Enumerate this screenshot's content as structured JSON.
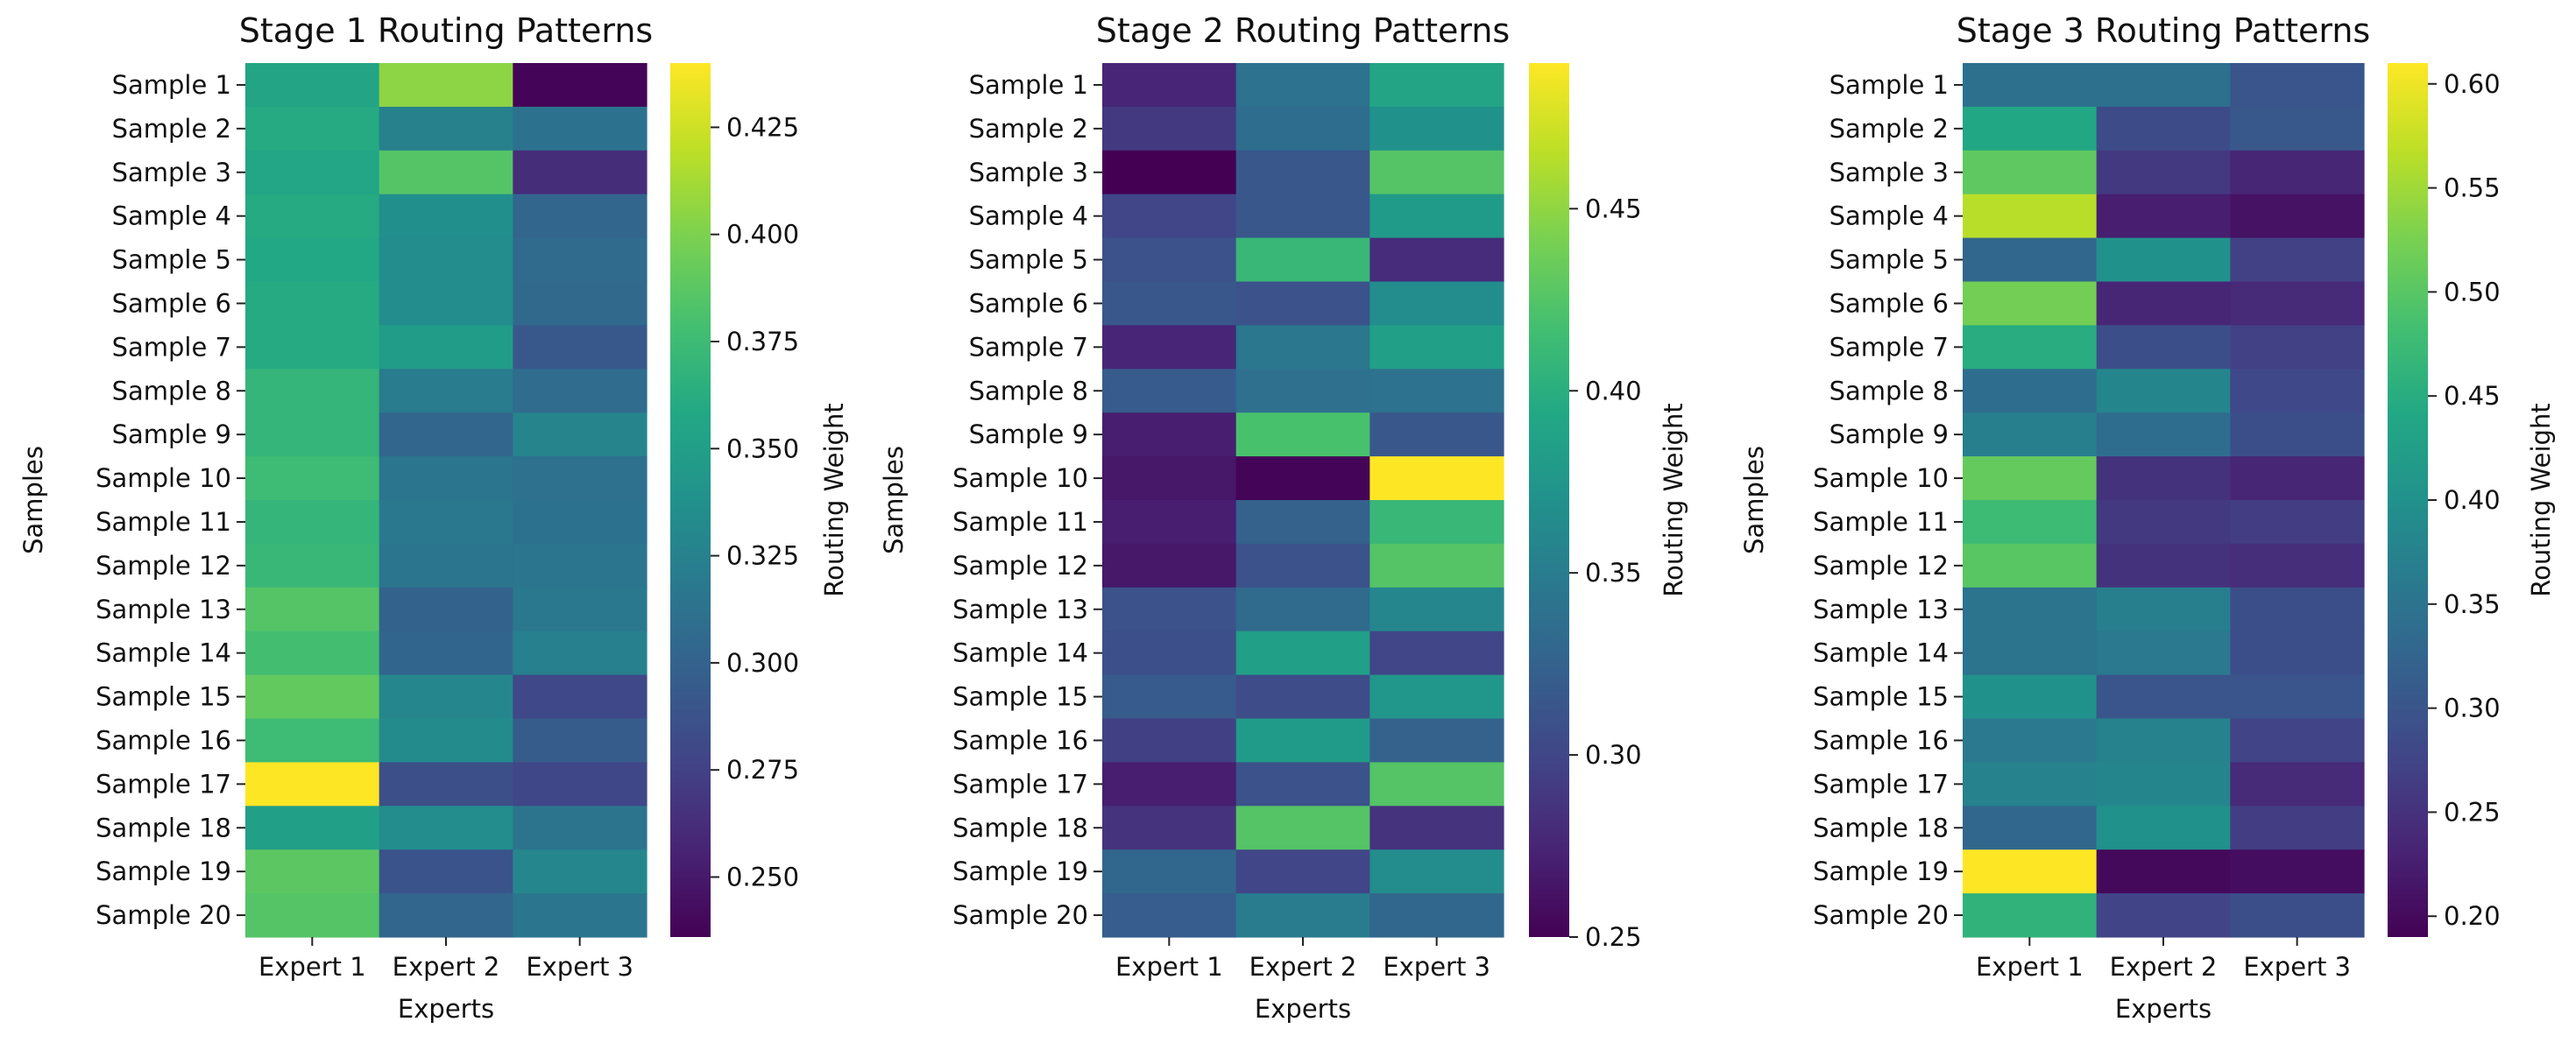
{
  "figure": {
    "colorbar_label": "Routing Weight"
  },
  "chart_data": [
    {
      "type": "heatmap",
      "title": "Stage 1 Routing Patterns",
      "xlabel": "Experts",
      "ylabel": "Samples",
      "colorbar_label": "Routing Weight",
      "colormap": "viridis",
      "x_categories": [
        "Expert 1",
        "Expert 2",
        "Expert 3"
      ],
      "y_categories": [
        "Sample 1",
        "Sample 2",
        "Sample 3",
        "Sample 4",
        "Sample 5",
        "Sample 6",
        "Sample 7",
        "Sample 8",
        "Sample 9",
        "Sample 10",
        "Sample 11",
        "Sample 12",
        "Sample 13",
        "Sample 14",
        "Sample 15",
        "Sample 16",
        "Sample 17",
        "Sample 18",
        "Sample 19",
        "Sample 20"
      ],
      "vmin": 0.236,
      "vmax": 0.44,
      "colorbar_ticks": [
        0.25,
        0.275,
        0.3,
        0.325,
        0.35,
        0.375,
        0.4,
        0.425
      ],
      "colorbar_tick_labels": [
        "0.250",
        "0.275",
        "0.300",
        "0.325",
        "0.350",
        "0.375",
        "0.400",
        "0.425"
      ],
      "values": [
        [
          0.355,
          0.405,
          0.238
        ],
        [
          0.36,
          0.325,
          0.313
        ],
        [
          0.357,
          0.385,
          0.262
        ],
        [
          0.36,
          0.337,
          0.303
        ],
        [
          0.358,
          0.335,
          0.306
        ],
        [
          0.36,
          0.335,
          0.305
        ],
        [
          0.36,
          0.348,
          0.292
        ],
        [
          0.37,
          0.32,
          0.308
        ],
        [
          0.37,
          0.303,
          0.327
        ],
        [
          0.375,
          0.315,
          0.312
        ],
        [
          0.37,
          0.318,
          0.313
        ],
        [
          0.372,
          0.315,
          0.315
        ],
        [
          0.385,
          0.3,
          0.318
        ],
        [
          0.378,
          0.302,
          0.324
        ],
        [
          0.39,
          0.33,
          0.28
        ],
        [
          0.375,
          0.333,
          0.295
        ],
        [
          0.44,
          0.285,
          0.279
        ],
        [
          0.35,
          0.335,
          0.314
        ],
        [
          0.388,
          0.288,
          0.33
        ],
        [
          0.385,
          0.303,
          0.316
        ]
      ]
    },
    {
      "type": "heatmap",
      "title": "Stage 2 Routing Patterns",
      "xlabel": "Experts",
      "ylabel": "Samples",
      "colorbar_label": "Routing Weight",
      "colormap": "viridis",
      "x_categories": [
        "Expert 1",
        "Expert 2",
        "Expert 3"
      ],
      "y_categories": [
        "Sample 1",
        "Sample 2",
        "Sample 3",
        "Sample 4",
        "Sample 5",
        "Sample 6",
        "Sample 7",
        "Sample 8",
        "Sample 9",
        "Sample 10",
        "Sample 11",
        "Sample 12",
        "Sample 13",
        "Sample 14",
        "Sample 15",
        "Sample 16",
        "Sample 17",
        "Sample 18",
        "Sample 19",
        "Sample 20"
      ],
      "vmin": 0.25,
      "vmax": 0.49,
      "colorbar_ticks": [
        0.25,
        0.3,
        0.35,
        0.4,
        0.45
      ],
      "colorbar_tick_labels": [
        "0.25",
        "0.30",
        "0.35",
        "0.40",
        "0.45"
      ],
      "values": [
        [
          0.275,
          0.34,
          0.39
        ],
        [
          0.29,
          0.335,
          0.37
        ],
        [
          0.25,
          0.315,
          0.425
        ],
        [
          0.3,
          0.315,
          0.38
        ],
        [
          0.31,
          0.41,
          0.28
        ],
        [
          0.315,
          0.31,
          0.365
        ],
        [
          0.275,
          0.345,
          0.385
        ],
        [
          0.318,
          0.338,
          0.34
        ],
        [
          0.27,
          0.42,
          0.315
        ],
        [
          0.265,
          0.252,
          0.49
        ],
        [
          0.27,
          0.325,
          0.41
        ],
        [
          0.265,
          0.31,
          0.425
        ],
        [
          0.31,
          0.333,
          0.36
        ],
        [
          0.308,
          0.385,
          0.3
        ],
        [
          0.318,
          0.305,
          0.375
        ],
        [
          0.295,
          0.38,
          0.325
        ],
        [
          0.27,
          0.31,
          0.425
        ],
        [
          0.285,
          0.425,
          0.285
        ],
        [
          0.33,
          0.3,
          0.365
        ],
        [
          0.32,
          0.35,
          0.33
        ]
      ]
    },
    {
      "type": "heatmap",
      "title": "Stage 3 Routing Patterns",
      "xlabel": "Experts",
      "ylabel": "Samples",
      "colorbar_label": "Routing Weight",
      "colormap": "viridis",
      "x_categories": [
        "Expert 1",
        "Expert 2",
        "Expert 3"
      ],
      "y_categories": [
        "Sample 1",
        "Sample 2",
        "Sample 3",
        "Sample 4",
        "Sample 5",
        "Sample 6",
        "Sample 7",
        "Sample 8",
        "Sample 9",
        "Sample 10",
        "Sample 11",
        "Sample 12",
        "Sample 13",
        "Sample 14",
        "Sample 15",
        "Sample 16",
        "Sample 17",
        "Sample 18",
        "Sample 19",
        "Sample 20"
      ],
      "vmin": 0.19,
      "vmax": 0.61,
      "colorbar_ticks": [
        0.2,
        0.25,
        0.3,
        0.35,
        0.4,
        0.45,
        0.5,
        0.55,
        0.6
      ],
      "colorbar_tick_labels": [
        "0.20",
        "0.25",
        "0.30",
        "0.35",
        "0.40",
        "0.45",
        "0.50",
        "0.55",
        "0.60"
      ],
      "values": [
        [
          0.345,
          0.345,
          0.3
        ],
        [
          0.44,
          0.285,
          0.305
        ],
        [
          0.505,
          0.26,
          0.235
        ],
        [
          0.565,
          0.225,
          0.21
        ],
        [
          0.33,
          0.4,
          0.27
        ],
        [
          0.52,
          0.235,
          0.24
        ],
        [
          0.45,
          0.29,
          0.27
        ],
        [
          0.34,
          0.38,
          0.28
        ],
        [
          0.37,
          0.34,
          0.29
        ],
        [
          0.51,
          0.25,
          0.235
        ],
        [
          0.475,
          0.26,
          0.265
        ],
        [
          0.5,
          0.25,
          0.245
        ],
        [
          0.35,
          0.37,
          0.29
        ],
        [
          0.35,
          0.36,
          0.29
        ],
        [
          0.4,
          0.3,
          0.3
        ],
        [
          0.36,
          0.375,
          0.275
        ],
        [
          0.375,
          0.38,
          0.24
        ],
        [
          0.33,
          0.4,
          0.265
        ],
        [
          0.61,
          0.2,
          0.205
        ],
        [
          0.46,
          0.275,
          0.29
        ]
      ]
    }
  ]
}
